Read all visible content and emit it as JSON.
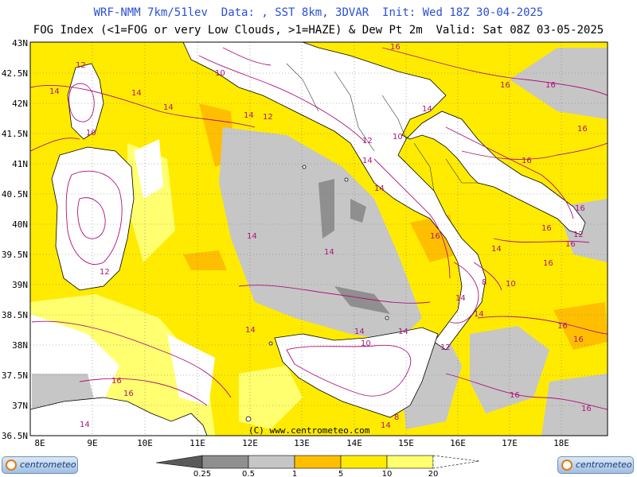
{
  "header": {
    "title_line1": "WRF-NMM 7km/51lev  Data: , SST 8km, 3DVAR  Init: Wed 18Z 30-04-2025",
    "title_line2": "FOG Index (<1=FOG or very Low Clouds, >1=HAZE) & Dew Pt 2m  Valid: Sat 08Z 03-05-2025"
  },
  "axes": {
    "lat_labels": [
      "43N",
      "42.5N",
      "42N",
      "41.5N",
      "41N",
      "40.5N",
      "40N",
      "39.5N",
      "39N",
      "38.5N",
      "38N",
      "37.5N",
      "37N",
      "36.5N"
    ],
    "lon_labels": [
      "8E",
      "9E",
      "10E",
      "11E",
      "12E",
      "13E",
      "14E",
      "15E",
      "16E",
      "17E",
      "18E"
    ]
  },
  "copyright": "(C) www.centrometeo.com",
  "logos": {
    "left": "centrometeo",
    "right": "centrometeo"
  },
  "colorbar": {
    "labels": [
      "0.25",
      "0.5",
      "1",
      "5",
      "10",
      "20"
    ],
    "colors": [
      "#8f8f8f",
      "#c6c6c6",
      "#ffbf00",
      "#ffeb00",
      "#ffff70"
    ]
  },
  "contour_labels": [
    "16",
    "16",
    "16",
    "14",
    "14",
    "12",
    "10",
    "10",
    "14",
    "12",
    "14",
    "14",
    "16",
    "16",
    "14",
    "14",
    "16",
    "12",
    "10",
    "14",
    "16",
    "14",
    "16",
    "12",
    "14",
    "16",
    "14",
    "10",
    "10",
    "8",
    "16",
    "14",
    "16",
    "12",
    "14",
    "14",
    "8",
    "14",
    "16",
    "16",
    "14",
    "12",
    "16",
    "14",
    "16",
    "16"
  ],
  "colors": {
    "sea_yellow": "#ffeb00",
    "fog_gray": "#c6c6c6",
    "dark_gray": "#8f8f8f",
    "orange": "#ffbf00",
    "light_yellow": "#ffff70",
    "contour": "#b0127a",
    "title_blue": "#2a4fd6"
  }
}
